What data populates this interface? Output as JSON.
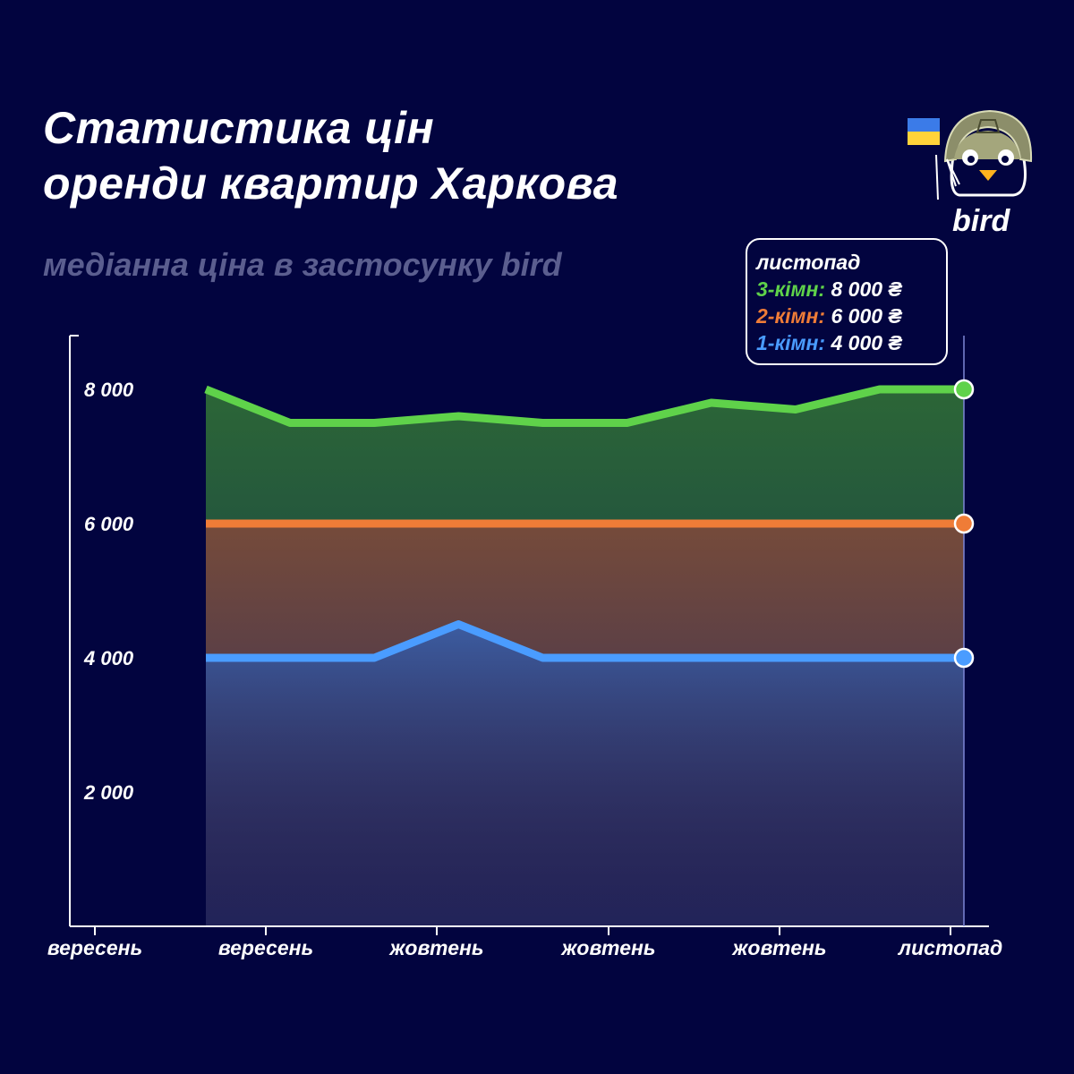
{
  "header": {
    "title_line1": "Статистика цін",
    "title_line2": "оренди квартир Харкова",
    "subtitle": "медіанна ціна в застосунку bird"
  },
  "logo": {
    "text": "bird",
    "icon": "bird-helmet-logo-icon",
    "flag_icon": "ukraine-flag-icon"
  },
  "tooltip": {
    "month": "листопад",
    "rows": [
      {
        "label": "3-кімн:",
        "value": "8 000 ₴",
        "color": "#5fd24a"
      },
      {
        "label": "2-кімн:",
        "value": "6 000 ₴",
        "color": "#ef7c37"
      },
      {
        "label": "1-кімн:",
        "value": "4 000 ₴",
        "color": "#4a9cff"
      }
    ]
  },
  "colors": {
    "background": "#02043f",
    "green": "#5fd24a",
    "orange": "#ef7c37",
    "blue": "#4a9cff"
  },
  "chart_data": {
    "type": "area",
    "title": "",
    "xlabel": "",
    "ylabel": "",
    "ylim": [
      0,
      8800
    ],
    "y_ticks": [
      2000,
      4000,
      6000,
      8000
    ],
    "y_tick_labels": [
      "2 000",
      "4 000",
      "6 000",
      "8 000"
    ],
    "x_tick_labels": [
      "вересень",
      "вересень",
      "жовтень",
      "жовтень",
      "жовтень",
      "листопад"
    ],
    "x_points": 10,
    "series": [
      {
        "name": "3-кімн",
        "color": "#5fd24a",
        "values": [
          8000,
          7500,
          7500,
          7600,
          7500,
          7500,
          7800,
          7700,
          8000,
          8000
        ]
      },
      {
        "name": "2-кімн",
        "color": "#ef7c37",
        "values": [
          6000,
          6000,
          6000,
          6000,
          6000,
          6000,
          6000,
          6000,
          6000,
          6000
        ]
      },
      {
        "name": "1-кімн",
        "color": "#4a9cff",
        "values": [
          4000,
          4000,
          4000,
          4500,
          4000,
          4000,
          4000,
          4000,
          4000,
          4000
        ]
      }
    ],
    "grid": false,
    "highlight_index": 9
  }
}
